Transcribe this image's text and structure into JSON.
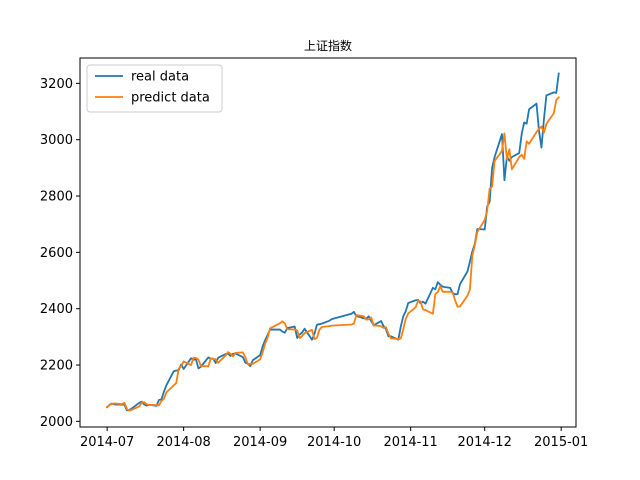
{
  "chart_data": {
    "type": "line",
    "title": "上证指数",
    "xlabel": "",
    "ylabel": "",
    "x_ticks": [
      "2014-07",
      "2014-08",
      "2014-09",
      "2014-10",
      "2014-11",
      "2014-12",
      "2015-01"
    ],
    "x_tick_dates": [
      "2014-07-01",
      "2014-08-01",
      "2014-09-01",
      "2014-10-01",
      "2014-11-01",
      "2014-12-01",
      "2015-01-01"
    ],
    "xlim": [
      "2014-06-20",
      "2015-01-07"
    ],
    "y_ticks": [
      2000,
      2200,
      2400,
      2600,
      2800,
      3000,
      3200
    ],
    "ylim": [
      1980,
      3290
    ],
    "grid": false,
    "legend": {
      "position": "top-left"
    },
    "series": [
      {
        "name": "real data",
        "color": "#1f77b4",
        "points": [
          [
            "2014-07-01",
            2050
          ],
          [
            "2014-07-02",
            2059
          ],
          [
            "2014-07-03",
            2063
          ],
          [
            "2014-07-04",
            2060
          ],
          [
            "2014-07-07",
            2059
          ],
          [
            "2014-07-08",
            2060
          ],
          [
            "2014-07-09",
            2039
          ],
          [
            "2014-07-10",
            2040
          ],
          [
            "2014-07-11",
            2046
          ],
          [
            "2014-07-14",
            2066
          ],
          [
            "2014-07-15",
            2070
          ],
          [
            "2014-07-16",
            2060
          ],
          [
            "2014-07-17",
            2056
          ],
          [
            "2014-07-18",
            2059
          ],
          [
            "2014-07-21",
            2055
          ],
          [
            "2014-07-22",
            2076
          ],
          [
            "2014-07-23",
            2078
          ],
          [
            "2014-07-24",
            2105
          ],
          [
            "2014-07-25",
            2128
          ],
          [
            "2014-07-28",
            2178
          ],
          [
            "2014-07-29",
            2180
          ],
          [
            "2014-07-30",
            2182
          ],
          [
            "2014-07-31",
            2202
          ],
          [
            "2014-08-01",
            2186
          ],
          [
            "2014-08-04",
            2224
          ],
          [
            "2014-08-05",
            2219
          ],
          [
            "2014-08-06",
            2220
          ],
          [
            "2014-08-07",
            2188
          ],
          [
            "2014-08-08",
            2194
          ],
          [
            "2014-08-11",
            2227
          ],
          [
            "2014-08-12",
            2223
          ],
          [
            "2014-08-13",
            2222
          ],
          [
            "2014-08-14",
            2207
          ],
          [
            "2014-08-15",
            2226
          ],
          [
            "2014-08-18",
            2239
          ],
          [
            "2014-08-19",
            2240
          ],
          [
            "2014-08-20",
            2232
          ],
          [
            "2014-08-21",
            2240
          ],
          [
            "2014-08-22",
            2241
          ],
          [
            "2014-08-25",
            2228
          ],
          [
            "2014-08-26",
            2208
          ],
          [
            "2014-08-27",
            2205
          ],
          [
            "2014-08-28",
            2196
          ],
          [
            "2014-08-29",
            2217
          ],
          [
            "2014-09-01",
            2235
          ],
          [
            "2014-09-02",
            2266
          ],
          [
            "2014-09-03",
            2288
          ],
          [
            "2014-09-04",
            2306
          ],
          [
            "2014-09-05",
            2326
          ],
          [
            "2014-09-09",
            2326
          ],
          [
            "2014-09-10",
            2319
          ],
          [
            "2014-09-11",
            2315
          ],
          [
            "2014-09-12",
            2331
          ],
          [
            "2014-09-15",
            2337
          ],
          [
            "2014-09-16",
            2296
          ],
          [
            "2014-09-17",
            2308
          ],
          [
            "2014-09-18",
            2315
          ],
          [
            "2014-09-19",
            2329
          ],
          [
            "2014-09-22",
            2290
          ],
          [
            "2014-09-23",
            2310
          ],
          [
            "2014-09-24",
            2343
          ],
          [
            "2014-09-25",
            2345
          ],
          [
            "2014-09-26",
            2347
          ],
          [
            "2014-09-29",
            2357
          ],
          [
            "2014-09-30",
            2363
          ],
          [
            "2014-10-08",
            2382
          ],
          [
            "2014-10-09",
            2389
          ],
          [
            "2014-10-10",
            2374
          ],
          [
            "2014-10-13",
            2366
          ],
          [
            "2014-10-14",
            2364
          ],
          [
            "2014-10-15",
            2373
          ],
          [
            "2014-10-16",
            2356
          ],
          [
            "2014-10-17",
            2341
          ],
          [
            "2014-10-20",
            2356
          ],
          [
            "2014-10-21",
            2339
          ],
          [
            "2014-10-22",
            2326
          ],
          [
            "2014-10-23",
            2302
          ],
          [
            "2014-10-24",
            2302
          ],
          [
            "2014-10-27",
            2290
          ],
          [
            "2014-10-28",
            2337
          ],
          [
            "2014-10-29",
            2373
          ],
          [
            "2014-10-30",
            2391
          ],
          [
            "2014-10-31",
            2420
          ],
          [
            "2014-11-03",
            2430
          ],
          [
            "2014-11-04",
            2431
          ],
          [
            "2014-11-05",
            2419
          ],
          [
            "2014-11-06",
            2425
          ],
          [
            "2014-11-07",
            2418
          ],
          [
            "2014-11-10",
            2474
          ],
          [
            "2014-11-11",
            2469
          ],
          [
            "2014-11-12",
            2494
          ],
          [
            "2014-11-13",
            2485
          ],
          [
            "2014-11-14",
            2478
          ],
          [
            "2014-11-17",
            2474
          ],
          [
            "2014-11-18",
            2456
          ],
          [
            "2014-11-19",
            2451
          ],
          [
            "2014-11-20",
            2452
          ],
          [
            "2014-11-21",
            2487
          ],
          [
            "2014-11-24",
            2532
          ],
          [
            "2014-11-25",
            2567
          ],
          [
            "2014-11-26",
            2604
          ],
          [
            "2014-11-27",
            2630
          ],
          [
            "2014-11-28",
            2683
          ],
          [
            "2014-12-01",
            2681
          ],
          [
            "2014-12-02",
            2763
          ],
          [
            "2014-12-03",
            2780
          ],
          [
            "2014-12-04",
            2900
          ],
          [
            "2014-12-05",
            2938
          ],
          [
            "2014-12-08",
            3020
          ],
          [
            "2014-12-09",
            2856
          ],
          [
            "2014-12-10",
            2940
          ],
          [
            "2014-12-11",
            2925
          ],
          [
            "2014-12-12",
            2938
          ],
          [
            "2014-12-15",
            2953
          ],
          [
            "2014-12-16",
            3021
          ],
          [
            "2014-12-17",
            3061
          ],
          [
            "2014-12-18",
            3057
          ],
          [
            "2014-12-19",
            3108
          ],
          [
            "2014-12-22",
            3128
          ],
          [
            "2014-12-23",
            3032
          ],
          [
            "2014-12-24",
            2972
          ],
          [
            "2014-12-25",
            3072
          ],
          [
            "2014-12-26",
            3157
          ],
          [
            "2014-12-29",
            3168
          ],
          [
            "2014-12-30",
            3166
          ],
          [
            "2014-12-31",
            3235
          ]
        ]
      },
      {
        "name": "predict data",
        "color": "#ff7f0e",
        "points": [
          [
            "2014-07-01",
            2052
          ],
          [
            "2014-07-02",
            2058
          ],
          [
            "2014-07-03",
            2062
          ],
          [
            "2014-07-04",
            2064
          ],
          [
            "2014-07-07",
            2061
          ],
          [
            "2014-07-08",
            2066
          ],
          [
            "2014-07-09",
            2044
          ],
          [
            "2014-07-10",
            2038
          ],
          [
            "2014-07-11",
            2041
          ],
          [
            "2014-07-14",
            2053
          ],
          [
            "2014-07-15",
            2066
          ],
          [
            "2014-07-16",
            2068
          ],
          [
            "2014-07-17",
            2061
          ],
          [
            "2014-07-18",
            2058
          ],
          [
            "2014-07-21",
            2058
          ],
          [
            "2014-07-22",
            2057
          ],
          [
            "2014-07-23",
            2072
          ],
          [
            "2014-07-24",
            2080
          ],
          [
            "2014-07-25",
            2103
          ],
          [
            "2014-07-28",
            2128
          ],
          [
            "2014-07-29",
            2136
          ],
          [
            "2014-07-30",
            2188
          ],
          [
            "2014-07-31",
            2195
          ],
          [
            "2014-08-01",
            2213
          ],
          [
            "2014-08-04",
            2200
          ],
          [
            "2014-08-05",
            2226
          ],
          [
            "2014-08-06",
            2225
          ],
          [
            "2014-08-07",
            2219
          ],
          [
            "2014-08-08",
            2197
          ],
          [
            "2014-08-11",
            2195
          ],
          [
            "2014-08-12",
            2224
          ],
          [
            "2014-08-13",
            2221
          ],
          [
            "2014-08-14",
            2221
          ],
          [
            "2014-08-15",
            2208
          ],
          [
            "2014-08-18",
            2234
          ],
          [
            "2014-08-19",
            2246
          ],
          [
            "2014-08-20",
            2240
          ],
          [
            "2014-08-21",
            2231
          ],
          [
            "2014-08-22",
            2243
          ],
          [
            "2014-08-25",
            2245
          ],
          [
            "2014-08-26",
            2228
          ],
          [
            "2014-08-27",
            2203
          ],
          [
            "2014-08-28",
            2205
          ],
          [
            "2014-08-29",
            2204
          ],
          [
            "2014-09-01",
            2220
          ],
          [
            "2014-09-02",
            2244
          ],
          [
            "2014-09-03",
            2275
          ],
          [
            "2014-09-04",
            2296
          ],
          [
            "2014-09-05",
            2330
          ],
          [
            "2014-09-09",
            2348
          ],
          [
            "2014-09-10",
            2355
          ],
          [
            "2014-09-11",
            2348
          ],
          [
            "2014-09-12",
            2327
          ],
          [
            "2014-09-15",
            2326
          ],
          [
            "2014-09-16",
            2323
          ],
          [
            "2014-09-17",
            2296
          ],
          [
            "2014-09-18",
            2303
          ],
          [
            "2014-09-19",
            2313
          ],
          [
            "2014-09-22",
            2325
          ],
          [
            "2014-09-23",
            2292
          ],
          [
            "2014-09-24",
            2296
          ],
          [
            "2014-09-25",
            2325
          ],
          [
            "2014-09-26",
            2335
          ],
          [
            "2014-09-29",
            2338
          ],
          [
            "2014-09-30",
            2340
          ],
          [
            "2014-10-08",
            2344
          ],
          [
            "2014-10-09",
            2347
          ],
          [
            "2014-10-10",
            2377
          ],
          [
            "2014-10-13",
            2373
          ],
          [
            "2014-10-14",
            2361
          ],
          [
            "2014-10-15",
            2362
          ],
          [
            "2014-10-16",
            2369
          ],
          [
            "2014-10-17",
            2341
          ],
          [
            "2014-10-20",
            2338
          ],
          [
            "2014-10-21",
            2332
          ],
          [
            "2014-10-22",
            2334
          ],
          [
            "2014-10-23",
            2311
          ],
          [
            "2014-10-24",
            2295
          ],
          [
            "2014-10-27",
            2292
          ],
          [
            "2014-10-28",
            2294
          ],
          [
            "2014-10-29",
            2327
          ],
          [
            "2014-10-30",
            2364
          ],
          [
            "2014-10-31",
            2383
          ],
          [
            "2014-11-03",
            2405
          ],
          [
            "2014-11-04",
            2428
          ],
          [
            "2014-11-05",
            2426
          ],
          [
            "2014-11-06",
            2398
          ],
          [
            "2014-11-07",
            2395
          ],
          [
            "2014-11-10",
            2382
          ],
          [
            "2014-11-11",
            2452
          ],
          [
            "2014-11-12",
            2459
          ],
          [
            "2014-11-13",
            2480
          ],
          [
            "2014-11-14",
            2460
          ],
          [
            "2014-11-17",
            2460
          ],
          [
            "2014-11-18",
            2457
          ],
          [
            "2014-11-19",
            2430
          ],
          [
            "2014-11-20",
            2407
          ],
          [
            "2014-11-21",
            2408
          ],
          [
            "2014-11-24",
            2446
          ],
          [
            "2014-11-25",
            2468
          ],
          [
            "2014-11-26",
            2589
          ],
          [
            "2014-11-27",
            2625
          ],
          [
            "2014-11-28",
            2672
          ],
          [
            "2014-12-01",
            2715
          ],
          [
            "2014-12-02",
            2746
          ],
          [
            "2014-12-03",
            2826
          ],
          [
            "2014-12-04",
            2833
          ],
          [
            "2014-12-05",
            2924
          ],
          [
            "2014-12-08",
            2960
          ],
          [
            "2014-12-09",
            3022
          ],
          [
            "2014-12-10",
            2931
          ],
          [
            "2014-12-11",
            2966
          ],
          [
            "2014-12-12",
            2895
          ],
          [
            "2014-12-15",
            2938
          ],
          [
            "2014-12-16",
            2947
          ],
          [
            "2014-12-17",
            2932
          ],
          [
            "2014-12-18",
            2994
          ],
          [
            "2014-12-19",
            2985
          ],
          [
            "2014-12-22",
            3027
          ],
          [
            "2014-12-23",
            3038
          ],
          [
            "2014-12-24",
            3047
          ],
          [
            "2014-12-25",
            3025
          ],
          [
            "2014-12-26",
            3056
          ],
          [
            "2014-12-29",
            3094
          ],
          [
            "2014-12-30",
            3141
          ],
          [
            "2014-12-31",
            3150
          ]
        ]
      }
    ]
  }
}
